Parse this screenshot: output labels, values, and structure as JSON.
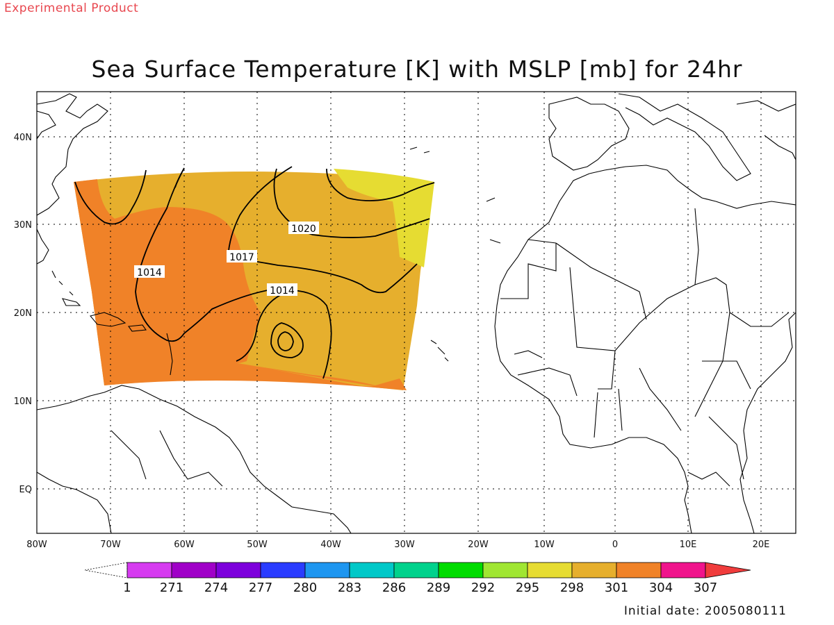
{
  "header": {
    "experimental_label": "Experimental Product",
    "title": "Sea Surface Temperature [K] with MSLP [mb] for 24hr"
  },
  "footer": {
    "initial_date": "Initial date: 2005080111"
  },
  "map": {
    "lon_labels": [
      "80W",
      "70W",
      "60W",
      "50W",
      "40W",
      "30W",
      "20W",
      "10W",
      "0",
      "10E",
      "20E"
    ],
    "lat_labels": [
      "40N",
      "30N",
      "20N",
      "10N",
      "EQ"
    ],
    "lon_range": [
      -80,
      23
    ],
    "lat_range": [
      -5,
      45
    ],
    "grid": "dotted",
    "contour_labels": [
      "1020",
      "1017",
      "1014",
      "1014"
    ],
    "regions": {
      "sst_301_band": "301",
      "sst_298_band": "298",
      "sst_304_band": "304"
    }
  },
  "colorbar": {
    "labels": [
      "1",
      "271",
      "274",
      "277",
      "280",
      "283",
      "286",
      "289",
      "292",
      "295",
      "298",
      "301",
      "304",
      "307"
    ],
    "colors": [
      "#d63bf0",
      "#a000c8",
      "#7d00dc",
      "#2a3cff",
      "#1e96f0",
      "#00c8c8",
      "#00d28c",
      "#00dc00",
      "#a0e632",
      "#e6dc32",
      "#e6af2d",
      "#f08228",
      "#f0148c"
    ],
    "under_color": "#ffffff",
    "over_color": "#f03c3c"
  },
  "colors": {
    "sst_298": "#e6dc32",
    "sst_301": "#e6af2d",
    "sst_304": "#f08228",
    "coast": "#000000"
  }
}
